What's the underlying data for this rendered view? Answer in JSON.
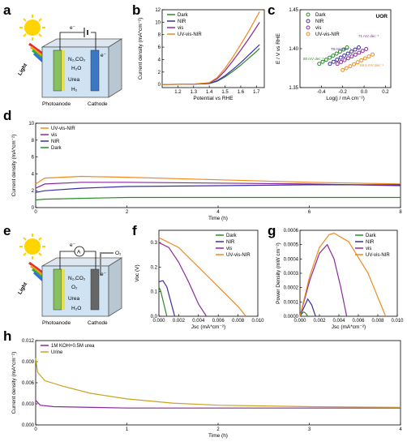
{
  "panel_labels": {
    "a": "a",
    "b": "b",
    "c": "c",
    "d": "d",
    "e": "e",
    "f": "f",
    "g": "g",
    "h": "h"
  },
  "schematic_a": {
    "light": "Light",
    "electron": "e⁻",
    "species1": "N₂,CO₂",
    "species2": "H₂O",
    "species3": "Urea",
    "species4": "H₂",
    "photoanode": "Photoanode",
    "cathode": "Cathode"
  },
  "schematic_e": {
    "light": "Light",
    "electron": "e⁻",
    "ammeter": "A",
    "o2_out": "O₂",
    "species1": "N₂,CO₂",
    "species2": "O₂",
    "species3": "Urea",
    "species4": "H₂O",
    "photoanode": "Photoanode",
    "cathode": "Cathode"
  },
  "colors": {
    "Dark": "#2a8a2a",
    "NIR": "#3b2fa0",
    "vis": "#8a2a9a",
    "UV-vis-NIR": "#f08a1e",
    "KOH": "#8a2a9a",
    "Urine": "#c8a41e"
  },
  "chart_data": [
    {
      "id": "b",
      "type": "line",
      "xlabel": "Potential vs RHE",
      "ylabel": "Current density (mA*cm⁻²)",
      "xlim": [
        1.1,
        1.75
      ],
      "ylim": [
        -0.5,
        12
      ],
      "xticks": [
        "1.2",
        "1.3",
        "1.4",
        "1.5",
        "1.6",
        "1.7"
      ],
      "yticks": [
        "0",
        "2",
        "4",
        "6",
        "8",
        "10",
        "12"
      ],
      "legend_position": "top-left",
      "series": [
        {
          "name": "Dark",
          "x": [
            1.1,
            1.3,
            1.4,
            1.45,
            1.5,
            1.55,
            1.6,
            1.65,
            1.7,
            1.72
          ],
          "values": [
            0,
            0.05,
            0.15,
            0.5,
            1.2,
            2.1,
            3.1,
            4.2,
            5.3,
            5.8
          ]
        },
        {
          "name": "NIR",
          "x": [
            1.1,
            1.3,
            1.4,
            1.45,
            1.5,
            1.55,
            1.6,
            1.65,
            1.7,
            1.72
          ],
          "values": [
            0,
            0.05,
            0.18,
            0.6,
            1.4,
            2.4,
            3.5,
            4.7,
            5.9,
            6.4
          ]
        },
        {
          "name": "vis",
          "x": [
            1.1,
            1.3,
            1.4,
            1.45,
            1.5,
            1.55,
            1.6,
            1.65,
            1.7,
            1.72
          ],
          "values": [
            0,
            0.06,
            0.25,
            0.9,
            2.2,
            3.8,
            5.5,
            7.3,
            9.2,
            10.0
          ]
        },
        {
          "name": "UV-vis-NIR",
          "x": [
            1.1,
            1.3,
            1.4,
            1.45,
            1.5,
            1.55,
            1.6,
            1.65,
            1.7,
            1.72
          ],
          "values": [
            0,
            0.07,
            0.3,
            1.1,
            2.6,
            4.4,
            6.4,
            8.5,
            10.8,
            11.7
          ]
        }
      ]
    },
    {
      "id": "c",
      "type": "scatter",
      "title": "UOR",
      "xlabel": "Log(j / mA cm⁻²)",
      "ylabel": "E / V vs RHE",
      "xlim": [
        -0.6,
        0.25
      ],
      "ylim": [
        1.35,
        1.45
      ],
      "xticks": [
        "-0.4",
        "-0.2",
        "0.0",
        "0.2"
      ],
      "yticks": [
        "1.35",
        "1.40",
        "1.45"
      ],
      "legend_position": "top-left",
      "annotations": [
        "80 mV dec⁻¹",
        "78 mV dec⁻¹",
        "71 mV dec⁻¹",
        "69.5 mV dec⁻¹"
      ],
      "series": [
        {
          "name": "Dark",
          "x": [
            -0.42,
            -0.16
          ],
          "values": [
            1.3805,
            1.4015
          ]
        },
        {
          "name": "NIR",
          "x": [
            -0.32,
            -0.05
          ],
          "values": [
            1.3805,
            1.4015
          ]
        },
        {
          "name": "vis",
          "x": [
            -0.25,
            0.02
          ],
          "values": [
            1.3805,
            1.3995
          ]
        },
        {
          "name": "UV-vis-NIR",
          "x": [
            -0.2,
            0.08
          ],
          "values": [
            1.3725,
            1.3925
          ]
        }
      ]
    },
    {
      "id": "d",
      "type": "line",
      "xlabel": "Time (h)",
      "ylabel": "Current density (mA*cm⁻²)",
      "xlim": [
        0,
        8
      ],
      "ylim": [
        0,
        10
      ],
      "xticks": [
        "0",
        "2",
        "4",
        "6",
        "8"
      ],
      "yticks": [
        "0",
        "2",
        "4",
        "6",
        "8",
        "10"
      ],
      "legend_position": "top-left",
      "series": [
        {
          "name": "UV-vis-NIR",
          "x": [
            0,
            0.2,
            1,
            2,
            4,
            6,
            8
          ],
          "values": [
            2.8,
            3.5,
            3.7,
            3.6,
            3.3,
            3.0,
            2.8
          ]
        },
        {
          "name": "vis",
          "x": [
            0,
            0.2,
            1,
            2,
            4,
            6,
            8
          ],
          "values": [
            2.3,
            2.8,
            3.0,
            3.0,
            2.9,
            2.8,
            2.6
          ]
        },
        {
          "name": "NIR",
          "x": [
            0,
            0.2,
            1,
            2,
            4,
            6,
            8
          ],
          "values": [
            1.8,
            2.0,
            2.3,
            2.5,
            2.6,
            2.7,
            2.7
          ]
        },
        {
          "name": "Dark",
          "x": [
            0,
            0.2,
            1,
            2,
            4,
            6,
            8
          ],
          "values": [
            0.9,
            1.0,
            1.1,
            1.2,
            1.2,
            1.2,
            1.2
          ]
        }
      ]
    },
    {
      "id": "f",
      "type": "line",
      "xlabel": "Jsc (mA*cm⁻²)",
      "ylabel": "Voc (V)",
      "xlim": [
        0,
        0.01
      ],
      "ylim": [
        0,
        0.35
      ],
      "xticks": [
        "0.000",
        "0.002",
        "0.004",
        "0.006",
        "0.008",
        "0.010"
      ],
      "yticks": [
        "0.0",
        "0.1",
        "0.2",
        "0.3"
      ],
      "legend_position": "top-right",
      "series": [
        {
          "name": "Dark",
          "x": [
            0,
            0.0002,
            0.0005,
            0.0008
          ],
          "values": [
            0.12,
            0.1,
            0.05,
            0
          ]
        },
        {
          "name": "NIR",
          "x": [
            0,
            0.0004,
            0.0008,
            0.0012,
            0.0016
          ],
          "values": [
            0.14,
            0.145,
            0.12,
            0.06,
            0
          ]
        },
        {
          "name": "vis",
          "x": [
            0,
            0.001,
            0.002,
            0.003,
            0.004,
            0.0048
          ],
          "values": [
            0.3,
            0.28,
            0.22,
            0.14,
            0.05,
            0
          ]
        },
        {
          "name": "UV-vis-NIR",
          "x": [
            0,
            0.002,
            0.004,
            0.006,
            0.008,
            0.0088
          ],
          "values": [
            0.32,
            0.28,
            0.2,
            0.12,
            0.04,
            0
          ]
        }
      ]
    },
    {
      "id": "g",
      "type": "line",
      "xlabel": "Jsc (mA*cm⁻²)",
      "ylabel": "Power Density (mW cm⁻²)",
      "xlim": [
        0,
        0.01
      ],
      "ylim": [
        0,
        0.0006
      ],
      "xticks": [
        "0.000",
        "0.002",
        "0.004",
        "0.006",
        "0.008",
        "0.010"
      ],
      "yticks": [
        "0.0000",
        "0.0001",
        "0.0002",
        "0.0003",
        "0.0004",
        "0.0005",
        "0.0006"
      ],
      "legend_position": "top-right",
      "series": [
        {
          "name": "Dark",
          "x": [
            0,
            0.0002,
            0.0004,
            0.0006,
            0.0008
          ],
          "values": [
            0,
            2e-05,
            3e-05,
            2e-05,
            0
          ]
        },
        {
          "name": "NIR",
          "x": [
            0,
            0.0004,
            0.0008,
            0.0012,
            0.0016
          ],
          "values": [
            0,
            6e-05,
            0.00012,
            8e-05,
            0
          ]
        },
        {
          "name": "vis",
          "x": [
            0,
            0.001,
            0.002,
            0.0028,
            0.0035,
            0.0042,
            0.0048
          ],
          "values": [
            0,
            0.00025,
            0.00044,
            0.0005,
            0.0004,
            0.0002,
            0
          ]
        },
        {
          "name": "UV-vis-NIR",
          "x": [
            0,
            0.001,
            0.002,
            0.003,
            0.0035,
            0.005,
            0.007,
            0.0088
          ],
          "values": [
            0,
            0.00028,
            0.00048,
            0.00057,
            0.00058,
            0.00052,
            0.0003,
            0
          ]
        }
      ]
    },
    {
      "id": "h",
      "type": "line",
      "xlabel": "Time (h)",
      "ylabel": "Current density (mA*cm⁻²)",
      "xlim": [
        0,
        4
      ],
      "ylim": [
        0,
        0.012
      ],
      "xticks": [
        "0",
        "1",
        "2",
        "3",
        "4"
      ],
      "yticks": [
        "0.000",
        "0.003",
        "0.006",
        "0.009",
        "0.012"
      ],
      "legend_position": "top-left",
      "series": [
        {
          "name": "1M KOH+0.5M urea",
          "x": [
            0,
            0.05,
            0.2,
            1,
            2,
            3,
            4
          ],
          "values": [
            0.0035,
            0.0028,
            0.0026,
            0.0024,
            0.0024,
            0.0024,
            0.0024
          ]
        },
        {
          "name": "Urine",
          "x": [
            0,
            0.02,
            0.1,
            0.3,
            0.6,
            1,
            1.5,
            2,
            3,
            4
          ],
          "values": [
            0.0095,
            0.0075,
            0.0063,
            0.0055,
            0.0045,
            0.0037,
            0.0031,
            0.0028,
            0.0026,
            0.0025
          ]
        }
      ]
    }
  ]
}
